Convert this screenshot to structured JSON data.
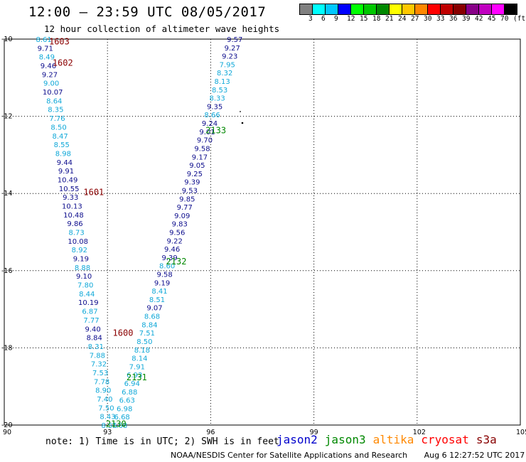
{
  "header": {
    "title": "12:00 – 23:59 UTC 08/05/2017",
    "subtitle": "12 hour collection of altimeter wave heights"
  },
  "legend": {
    "colors": [
      "#808080",
      "#00ffff",
      "#00c8ff",
      "#0000ff",
      "#00ff00",
      "#00c800",
      "#008800",
      "#ffff00",
      "#ffc800",
      "#ff8800",
      "#ff0000",
      "#c00000",
      "#880000",
      "#880088",
      "#c000c0",
      "#ff00ff",
      "#000000"
    ],
    "labels": [
      "3",
      "6",
      "9",
      "12",
      "15",
      "18",
      "21",
      "24",
      "27",
      "30",
      "33",
      "36",
      "39",
      "42",
      "45",
      "70",
      "(ft)"
    ]
  },
  "axes": {
    "x_labels": [
      "90",
      "93",
      "96",
      "99",
      "102",
      "105"
    ],
    "y_labels": [
      "-10",
      "-12",
      "-14",
      "-16",
      "-18",
      "-20"
    ],
    "x_range": [
      90,
      105
    ],
    "y_range": [
      -20,
      -10
    ]
  },
  "colors": {
    "dark": "#0c0c8c",
    "light": "#10a8d8",
    "jason3": "#008800",
    "cryosat": "#8b0000"
  },
  "tracks": {
    "west": {
      "lon_start": 91.15,
      "lat_start": -10.0,
      "lon_end": 93.05,
      "lat_end": -20.0,
      "values": [
        [
          "8.61",
          "light"
        ],
        [
          "9.71",
          "dark"
        ],
        [
          "8.49",
          "light"
        ],
        [
          "9.46",
          "dark"
        ],
        [
          "9.27",
          "dark"
        ],
        [
          "9.00",
          "light"
        ],
        [
          "10.07",
          "dark"
        ],
        [
          "8.64",
          "light"
        ],
        [
          "8.35",
          "light"
        ],
        [
          "7.76",
          "light"
        ],
        [
          "8.50",
          "light"
        ],
        [
          "8.47",
          "light"
        ],
        [
          "8.55",
          "light"
        ],
        [
          "8.98",
          "light"
        ],
        [
          "9.44",
          "dark"
        ],
        [
          "9.91",
          "dark"
        ],
        [
          "10.49",
          "dark"
        ],
        [
          "10.55",
          "dark"
        ],
        [
          "9.33",
          "dark"
        ],
        [
          "10.13",
          "dark"
        ],
        [
          "10.48",
          "dark"
        ],
        [
          "9.86",
          "dark"
        ],
        [
          "8.73",
          "light"
        ],
        [
          "10.08",
          "dark"
        ],
        [
          "8.92",
          "light"
        ],
        [
          "9.19",
          "dark"
        ],
        [
          "8.88",
          "light"
        ],
        [
          "9.10",
          "dark"
        ],
        [
          "7.80",
          "light"
        ],
        [
          "8.44",
          "light"
        ],
        [
          "10.19",
          "dark"
        ],
        [
          "6.87",
          "light"
        ],
        [
          "7.77",
          "light"
        ],
        [
          "9.40",
          "dark"
        ],
        [
          "8.84",
          "dark"
        ],
        [
          "8.31",
          "light"
        ],
        [
          "7.88",
          "light"
        ],
        [
          "7.32",
          "light"
        ],
        [
          "7.53",
          "light"
        ],
        [
          "7.78",
          "light"
        ],
        [
          "8.90",
          "light"
        ],
        [
          "7.40",
          "light"
        ],
        [
          "7.50",
          "light"
        ],
        [
          "8.43",
          "light"
        ],
        [
          "8.56",
          "light"
        ]
      ]
    },
    "east": {
      "lon_start": 96.7,
      "lat_start": -10.0,
      "lon_end": 93.35,
      "lat_end": -20.0,
      "values": [
        [
          "9.57",
          "dark"
        ],
        [
          "9.27",
          "dark"
        ],
        [
          "9.23",
          "dark"
        ],
        [
          "7.95",
          "light"
        ],
        [
          "8.32",
          "light"
        ],
        [
          "8.13",
          "light"
        ],
        [
          "8.53",
          "light"
        ],
        [
          "8.33",
          "light"
        ],
        [
          "9.35",
          "dark"
        ],
        [
          "8.66",
          "light"
        ],
        [
          "9.24",
          "dark"
        ],
        [
          "9.01",
          "dark"
        ],
        [
          "9.70",
          "dark"
        ],
        [
          "9.58",
          "dark"
        ],
        [
          "9.17",
          "dark"
        ],
        [
          "9.05",
          "dark"
        ],
        [
          "9.25",
          "dark"
        ],
        [
          "9.39",
          "dark"
        ],
        [
          "9.53",
          "dark"
        ],
        [
          "9.85",
          "dark"
        ],
        [
          "9.77",
          "dark"
        ],
        [
          "9.09",
          "dark"
        ],
        [
          "9.83",
          "dark"
        ],
        [
          "9.56",
          "dark"
        ],
        [
          "9.22",
          "dark"
        ],
        [
          "9.46",
          "dark"
        ],
        [
          "9.39",
          "dark"
        ],
        [
          "8.60",
          "light"
        ],
        [
          "9.58",
          "dark"
        ],
        [
          "9.19",
          "dark"
        ],
        [
          "8.41",
          "light"
        ],
        [
          "8.51",
          "light"
        ],
        [
          "9.07",
          "dark"
        ],
        [
          "8.68",
          "light"
        ],
        [
          "8.84",
          "light"
        ],
        [
          "7.51",
          "light"
        ],
        [
          "8.50",
          "light"
        ],
        [
          "8.18",
          "light"
        ],
        [
          "8.14",
          "light"
        ],
        [
          "7.91",
          "light"
        ],
        [
          "6.93",
          "light"
        ],
        [
          "6.94",
          "light"
        ],
        [
          "6.88",
          "light"
        ],
        [
          "6.63",
          "light"
        ],
        [
          "6.98",
          "light"
        ],
        [
          "6.68",
          "light"
        ],
        [
          "7.68",
          "light"
        ]
      ]
    }
  },
  "passes": [
    {
      "id": "1603",
      "lon": 91.6,
      "lat": -10.05,
      "sat": "cryosat"
    },
    {
      "id": "1602",
      "lon": 91.7,
      "lat": -10.6,
      "sat": "cryosat"
    },
    {
      "id": "1601",
      "lon": 92.6,
      "lat": -13.95,
      "sat": "cryosat"
    },
    {
      "id": "1600",
      "lon": 93.45,
      "lat": -17.6,
      "sat": "cryosat"
    },
    {
      "id": "2133",
      "lon": 96.15,
      "lat": -12.35,
      "sat": "jason3"
    },
    {
      "id": "2132",
      "lon": 95.0,
      "lat": -15.75,
      "sat": "jason3"
    },
    {
      "id": "2131",
      "lon": 93.85,
      "lat": -18.75,
      "sat": "jason3"
    },
    {
      "id": "2130",
      "lon": 93.25,
      "lat": -19.95,
      "sat": "jason3"
    }
  ],
  "footer": {
    "note": "note: 1) Time is in UTC; 2) SWH is in feet",
    "satellites": [
      {
        "name": "jason2",
        "color": "#0000cc"
      },
      {
        "name": "jason3",
        "color": "#008800"
      },
      {
        "name": "altika",
        "color": "#ff8800"
      },
      {
        "name": "cryosat",
        "color": "#ff0000"
      },
      {
        "name": "s3a",
        "color": "#880000"
      }
    ],
    "credit": "NOAA/NESDIS Center for Satellite Applications and Research",
    "timestamp": "Aug  6 12:27:52 UTC 2017"
  }
}
